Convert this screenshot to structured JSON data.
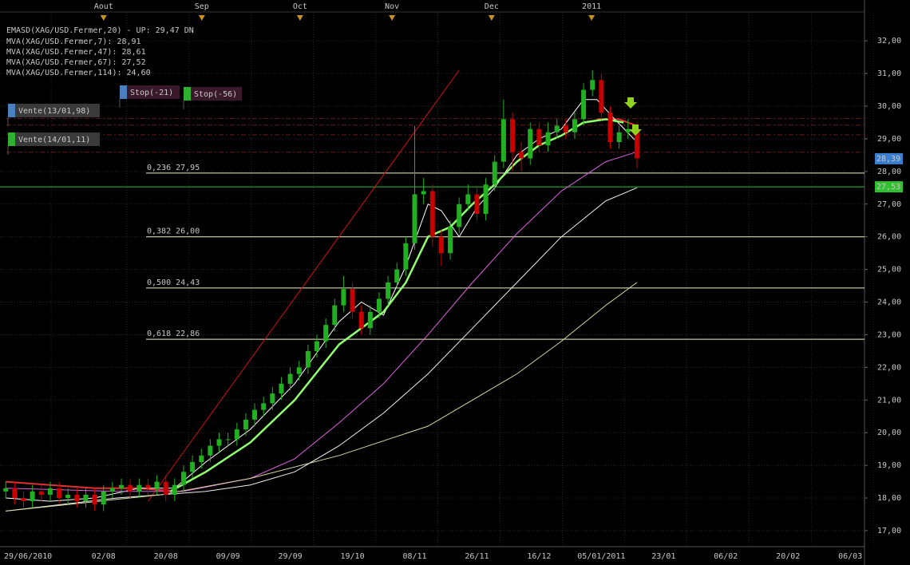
{
  "chart_data": {
    "type": "candlestick",
    "xlim": [
      -6.3,
      188.2
    ],
    "ylim": [
      16.51,
      32.86
    ],
    "yticks": [
      {
        "value": 17,
        "label": "17,00"
      },
      {
        "value": 18,
        "label": "18,00"
      },
      {
        "value": 19,
        "label": "19,00"
      },
      {
        "value": 20,
        "label": "20,00"
      },
      {
        "value": 21,
        "label": "21,00"
      },
      {
        "value": 22,
        "label": "22,00"
      },
      {
        "value": 23,
        "label": "23,00"
      },
      {
        "value": 24,
        "label": "24,00"
      },
      {
        "value": 25,
        "label": "25,00"
      },
      {
        "value": 26,
        "label": "26,00"
      },
      {
        "value": 27,
        "label": "27,00"
      },
      {
        "value": 28,
        "label": "28,00"
      },
      {
        "value": 29,
        "label": "29,00"
      },
      {
        "value": 30,
        "label": "30,00"
      },
      {
        "value": 31,
        "label": "31,00"
      },
      {
        "value": 32,
        "label": "32,00"
      }
    ],
    "xticks": [
      {
        "value": 0,
        "label": "29/06/2010"
      },
      {
        "value": 17,
        "label": "02/08"
      },
      {
        "value": 31,
        "label": "20/08"
      },
      {
        "value": 45,
        "label": "09/09"
      },
      {
        "value": 59,
        "label": "29/09"
      },
      {
        "value": 73,
        "label": "19/10"
      },
      {
        "value": 87,
        "label": "08/11"
      },
      {
        "value": 101,
        "label": "26/11"
      },
      {
        "value": 115,
        "label": "16/12"
      },
      {
        "value": 129,
        "label": "05/01/2011"
      },
      {
        "value": 143,
        "label": "23/01"
      },
      {
        "value": 157,
        "label": "06/02"
      },
      {
        "value": 171,
        "label": "20/02"
      },
      {
        "value": 185,
        "label": "06/03"
      }
    ],
    "x2ticks": [
      {
        "value": 17,
        "label": "Aout"
      },
      {
        "value": 39.1,
        "label": "Sep"
      },
      {
        "value": 61.2,
        "label": "Oct"
      },
      {
        "value": 81.9,
        "label": "Nov"
      },
      {
        "value": 104.3,
        "label": "Dec"
      },
      {
        "value": 126.8,
        "label": "2011"
      }
    ],
    "grid": true,
    "up_color": "#22b022",
    "down_color": "#c80000",
    "x": [
      -5,
      -3,
      -1,
      1,
      3,
      5,
      7,
      9,
      11,
      13,
      15,
      17,
      19,
      21,
      23,
      25,
      27,
      29,
      31,
      33,
      35,
      37,
      39,
      41,
      43,
      45,
      47,
      49,
      51,
      53,
      55,
      57,
      59,
      61,
      63,
      65,
      67,
      69,
      71,
      73,
      75,
      77,
      79,
      81,
      83,
      85,
      87,
      89,
      91,
      93,
      95,
      97,
      99,
      101,
      103,
      105,
      107,
      109,
      111,
      113,
      115,
      117,
      119,
      121,
      123,
      125,
      127,
      129,
      131,
      133,
      135,
      137
    ],
    "open": [
      18.2,
      18.3,
      18.0,
      17.9,
      18.2,
      18.1,
      18.3,
      18.0,
      18.1,
      17.9,
      18.1,
      17.8,
      18.2,
      18.3,
      18.4,
      18.2,
      18.4,
      18.3,
      18.5,
      18.1,
      18.4,
      18.8,
      19.1,
      19.3,
      19.6,
      19.8,
      19.8,
      20.1,
      20.4,
      20.7,
      20.9,
      21.2,
      21.5,
      21.8,
      22.0,
      22.5,
      22.8,
      23.3,
      23.9,
      24.4,
      23.7,
      23.2,
      23.7,
      24.1,
      24.6,
      25.0,
      25.8,
      27.3,
      27.4,
      26.0,
      25.5,
      26.3,
      27.0,
      27.3,
      26.7,
      27.6,
      28.3,
      29.6,
      28.6,
      28.4,
      29.3,
      28.8,
      29.2,
      29.4,
      29.2,
      29.6,
      30.5,
      30.8,
      29.8,
      28.9,
      29.2,
      29.3
    ],
    "high": [
      18.5,
      18.5,
      18.2,
      18.4,
      18.4,
      18.5,
      18.5,
      18.3,
      18.3,
      18.3,
      18.3,
      18.4,
      18.5,
      18.6,
      18.6,
      18.6,
      18.6,
      18.7,
      18.7,
      18.6,
      19.0,
      19.3,
      19.5,
      19.8,
      20.0,
      20.0,
      20.3,
      20.6,
      20.9,
      21.1,
      21.4,
      21.7,
      22.0,
      22.2,
      22.7,
      23.0,
      23.5,
      24.1,
      24.8,
      24.6,
      23.9,
      23.9,
      24.3,
      24.8,
      25.2,
      26.0,
      29.4,
      27.8,
      27.6,
      26.2,
      26.5,
      27.2,
      27.6,
      27.5,
      27.8,
      28.5,
      30.2,
      29.8,
      28.9,
      29.5,
      29.5,
      29.5,
      29.6,
      29.6,
      29.8,
      30.7,
      31.1,
      31.0,
      30.0,
      29.4,
      29.6,
      29.5
    ],
    "low": [
      18.0,
      17.8,
      17.7,
      17.7,
      17.9,
      17.9,
      17.8,
      17.8,
      17.7,
      17.7,
      17.6,
      17.6,
      18.0,
      18.1,
      18.0,
      18.0,
      18.1,
      18.1,
      17.9,
      17.9,
      18.2,
      18.6,
      18.9,
      19.1,
      19.4,
      19.6,
      19.6,
      19.9,
      20.2,
      20.5,
      20.7,
      21.0,
      21.3,
      21.6,
      21.8,
      22.3,
      22.6,
      23.1,
      23.7,
      23.5,
      23.0,
      23.0,
      23.5,
      23.9,
      24.4,
      24.8,
      25.6,
      27.0,
      25.7,
      25.1,
      25.3,
      26.1,
      26.8,
      26.5,
      26.5,
      27.4,
      28.1,
      28.0,
      28.0,
      28.2,
      28.6,
      28.6,
      29.0,
      29.0,
      29.0,
      29.4,
      30.3,
      29.6,
      28.7,
      28.7,
      29.0,
      28.1
    ],
    "close": [
      18.3,
      18.0,
      17.9,
      18.2,
      18.1,
      18.3,
      18.0,
      18.1,
      17.9,
      18.1,
      17.8,
      18.2,
      18.3,
      18.4,
      18.2,
      18.4,
      18.3,
      18.5,
      18.1,
      18.4,
      18.8,
      19.1,
      19.3,
      19.6,
      19.8,
      19.8,
      20.1,
      20.4,
      20.7,
      20.9,
      21.2,
      21.5,
      21.8,
      22.0,
      22.5,
      22.8,
      23.3,
      23.9,
      24.4,
      23.7,
      23.2,
      23.7,
      24.1,
      24.6,
      25.0,
      25.8,
      27.3,
      27.4,
      26.0,
      25.5,
      26.3,
      27.0,
      27.3,
      26.7,
      27.6,
      28.3,
      29.6,
      28.6,
      28.4,
      29.3,
      28.8,
      29.2,
      29.4,
      29.2,
      29.6,
      30.5,
      30.8,
      29.8,
      28.9,
      29.2,
      29.3,
      28.4
    ],
    "series": [
      {
        "name": "EMASD(XAG/USD.Fermer,20) - UP: 29,47",
        "color": "#e03030",
        "width": 2,
        "x": [
          -5,
          5,
          15,
          25,
          33,
          80,
          128,
          133,
          137
        ],
        "values": [
          18.5,
          18.4,
          18.3,
          18.3,
          18.2,
          null,
          29.6,
          29.6,
          29.4
        ]
      },
      {
        "name": "MVA(XAG/USD.Fermer,7): 28,91",
        "color": "#ffffff",
        "text_color": "#d0f4ff",
        "width": 1,
        "x": [
          -5,
          5,
          15,
          25,
          33,
          40,
          50,
          60,
          70,
          75,
          80,
          85,
          90,
          93,
          97,
          101,
          105,
          110,
          115,
          120,
          125,
          128,
          132,
          137
        ],
        "values": [
          18.0,
          17.9,
          18.0,
          18.3,
          18.3,
          19.1,
          20.1,
          21.5,
          23.4,
          24.0,
          23.6,
          25.1,
          27.0,
          26.8,
          26.0,
          26.9,
          27.5,
          28.5,
          29.0,
          29.3,
          30.2,
          30.2,
          29.6,
          28.9
        ]
      },
      {
        "name": "MVA(XAG/USD.Fermer,47): 28,61",
        "color": "#e060e0",
        "text_color": "#ff90ff",
        "width": 1,
        "x": [
          -5,
          20,
          35,
          50,
          60,
          70,
          80,
          90,
          100,
          110,
          120,
          130,
          137
        ],
        "values": [
          18.3,
          18.2,
          18.2,
          18.6,
          19.2,
          20.3,
          21.5,
          23.0,
          24.6,
          26.1,
          27.4,
          28.3,
          28.6
        ]
      },
      {
        "name": "MVA(XAG/USD.Fermer,67): 27,52",
        "color": "#f0f0f0",
        "text_color": "#ffffff",
        "width": 1,
        "x": [
          -5,
          20,
          40,
          50,
          60,
          70,
          80,
          90,
          100,
          110,
          120,
          130,
          137
        ],
        "values": [
          17.6,
          18.0,
          18.2,
          18.4,
          18.8,
          19.6,
          20.6,
          21.8,
          23.2,
          24.6,
          26.0,
          27.1,
          27.5
        ]
      },
      {
        "name": "MVA(XAG/USD.Fermer,114): 24,60",
        "color": "#d8d8a0",
        "text_color": "#e6e6a8",
        "width": 1,
        "x": [
          -5,
          30,
          50,
          70,
          90,
          100,
          110,
          120,
          130,
          137
        ],
        "values": [
          17.6,
          18.1,
          18.6,
          19.3,
          20.2,
          21.0,
          21.8,
          22.8,
          23.9,
          24.6
        ]
      },
      {
        "color": "#90ff70",
        "width": 2.5,
        "x": [
          32,
          40,
          50,
          60,
          70,
          80,
          85,
          90,
          95,
          100,
          105,
          110,
          115,
          120,
          125,
          130,
          134
        ],
        "values": [
          18.2,
          18.8,
          19.7,
          21.0,
          22.7,
          23.7,
          24.6,
          26.0,
          26.3,
          27.0,
          27.6,
          28.3,
          28.8,
          29.1,
          29.5,
          29.6,
          29.5
        ]
      }
    ],
    "legend_suffix": "DN",
    "trendline": {
      "x": [
        27,
        97
      ],
      "values": [
        17.9,
        31.1
      ],
      "color": "#d01010"
    },
    "fib_levels": [
      {
        "value": 27.95,
        "label": "0,236 27,95"
      },
      {
        "value": 26.0,
        "label": "0,382 26,00"
      },
      {
        "value": 24.43,
        "label": "0,500 24,43"
      },
      {
        "value": 22.86,
        "label": "0,618 22,86"
      }
    ],
    "dashed_levels": [
      29.62,
      29.42,
      29.12,
      28.59
    ],
    "price_tags": [
      {
        "value": 28.39,
        "label": "28,39",
        "color": "#3a7fd0"
      },
      {
        "value": 27.53,
        "label": "27,53",
        "color": "#30c030"
      }
    ],
    "orders": [
      {
        "label": "Vente(13/01,98)",
        "color": "#4a7fc0"
      },
      {
        "label": "Vente(14/01,11)",
        "color": "#30b030"
      },
      {
        "label": "Stop(-21)",
        "color": "#4a7fc0"
      },
      {
        "label": "Stop(-56)",
        "color": "#30b030"
      }
    ]
  }
}
